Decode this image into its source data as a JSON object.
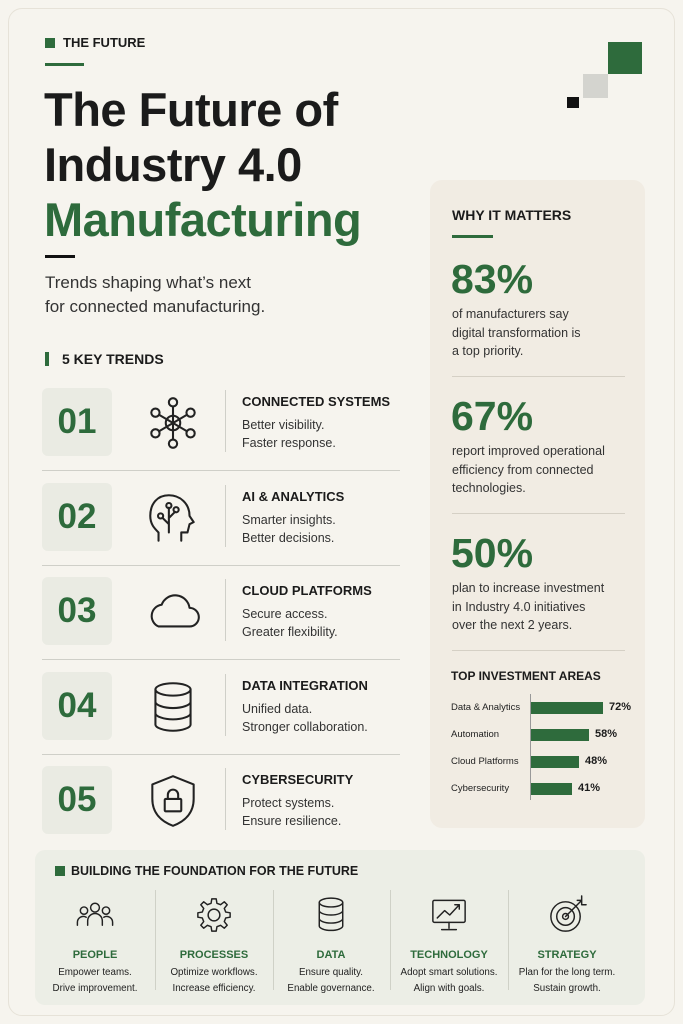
{
  "header": {
    "eyebrow": "THE FUTURE",
    "title_lines": [
      "The Future of",
      "Industry 4.0"
    ],
    "title_accent": "Manufacturing",
    "subtitle_lines": [
      "Trends shaping what’s next",
      "for connected manufacturing."
    ]
  },
  "trends": {
    "heading": "5 KEY TRENDS",
    "items": [
      {
        "number": "01",
        "title": "CONNECTED SYSTEMS",
        "lines": [
          "Better visibility.",
          "Faster response."
        ]
      },
      {
        "number": "02",
        "title": "AI & ANALYTICS",
        "lines": [
          "Smarter insights.",
          "Better decisions."
        ]
      },
      {
        "number": "03",
        "title": "CLOUD PLATFORMS",
        "lines": [
          "Secure access.",
          "Greater flexibility."
        ]
      },
      {
        "number": "04",
        "title": "DATA INTEGRATION",
        "lines": [
          "Unified data.",
          "Stronger collaboration."
        ]
      },
      {
        "number": "05",
        "title": "CYBERSECURITY",
        "lines": [
          "Protect systems.",
          "Ensure resilience."
        ]
      }
    ]
  },
  "why": {
    "heading": "WHY IT MATTERS",
    "stats": [
      {
        "value": "83%",
        "lines": [
          "of manufacturers say",
          "digital transformation is",
          "a top priority."
        ]
      },
      {
        "value": "67%",
        "lines": [
          "report improved operational",
          "efficiency from connected",
          "technologies."
        ]
      },
      {
        "value": "50%",
        "lines": [
          "plan to increase investment",
          "in Industry 4.0 initiatives",
          "over the next 2 years."
        ]
      }
    ]
  },
  "investment": {
    "type": "bar",
    "title": "TOP INVESTMENT AREAS",
    "categories": [
      "Data & Analytics",
      "Automation",
      "Cloud Platforms",
      "Cybersecurity"
    ],
    "values": [
      72,
      58,
      48,
      41
    ],
    "value_labels": [
      "72%",
      "58%",
      "48%",
      "41%"
    ],
    "color": "#2e6b3c"
  },
  "foundation": {
    "heading": "BUILDING THE FOUNDATION FOR THE FUTURE",
    "pillars": [
      {
        "title": "PEOPLE",
        "lines": [
          "Empower teams.",
          "Drive improvement."
        ]
      },
      {
        "title": "PROCESSES",
        "lines": [
          "Optimize workflows.",
          "Increase efficiency."
        ]
      },
      {
        "title": "DATA",
        "lines": [
          "Ensure quality.",
          "Enable governance."
        ]
      },
      {
        "title": "TECHNOLOGY",
        "lines": [
          "Adopt smart solutions.",
          "Align with goals."
        ]
      },
      {
        "title": "STRATEGY",
        "lines": [
          "Plan for the long term.",
          "Sustain growth."
        ]
      }
    ]
  }
}
